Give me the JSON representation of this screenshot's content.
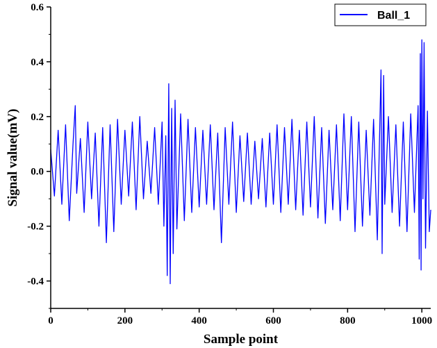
{
  "chart_data": {
    "type": "line",
    "title": "",
    "xlabel": "Sample point",
    "ylabel": "Signal value(mV)",
    "xlim": [
      0,
      1024
    ],
    "ylim": [
      -0.5,
      0.6
    ],
    "xticks": [
      0,
      200,
      400,
      600,
      800,
      1000
    ],
    "xtick_labels": [
      "0",
      "200",
      "400",
      "600",
      "800",
      "1000"
    ],
    "yticks": [
      -0.4,
      -0.2,
      0.0,
      0.2,
      0.4,
      0.6
    ],
    "ytick_labels": [
      "-0.4",
      "-0.2",
      "0.0",
      "0.2",
      "0.4",
      "0.6"
    ],
    "grid": false,
    "legend_position": "top-right",
    "series": [
      {
        "name": "Ball_1",
        "color": "#0000ff",
        "x": [
          0,
          10,
          20,
          30,
          40,
          50,
          60,
          66,
          70,
          80,
          90,
          100,
          110,
          120,
          130,
          140,
          150,
          160,
          170,
          180,
          190,
          200,
          210,
          220,
          230,
          240,
          250,
          260,
          270,
          280,
          290,
          300,
          305,
          310,
          314,
          318,
          322,
          326,
          330,
          335,
          340,
          350,
          360,
          370,
          380,
          390,
          400,
          410,
          420,
          430,
          440,
          450,
          460,
          470,
          480,
          490,
          500,
          510,
          520,
          530,
          540,
          550,
          560,
          570,
          580,
          590,
          600,
          610,
          620,
          630,
          640,
          650,
          660,
          670,
          680,
          690,
          700,
          710,
          720,
          730,
          740,
          750,
          760,
          770,
          780,
          790,
          800,
          810,
          820,
          830,
          840,
          850,
          860,
          870,
          880,
          890,
          893,
          897,
          900,
          910,
          920,
          930,
          940,
          950,
          960,
          970,
          980,
          990,
          993,
          996,
          998,
          1000,
          1003,
          1006,
          1010,
          1015,
          1020,
          1024
        ],
        "y": [
          0.08,
          -0.09,
          0.15,
          -0.12,
          0.17,
          -0.18,
          0.1,
          0.24,
          -0.08,
          0.12,
          -0.15,
          0.18,
          -0.1,
          0.14,
          -0.2,
          0.16,
          -0.26,
          0.17,
          -0.22,
          0.19,
          -0.12,
          0.15,
          -0.09,
          0.18,
          -0.14,
          0.2,
          -0.1,
          0.11,
          -0.08,
          0.16,
          -0.12,
          0.18,
          -0.2,
          0.13,
          -0.38,
          0.32,
          -0.41,
          0.23,
          -0.3,
          0.26,
          -0.21,
          0.21,
          -0.18,
          0.19,
          -0.15,
          0.16,
          -0.13,
          0.15,
          -0.12,
          0.17,
          -0.14,
          0.14,
          -0.26,
          0.16,
          -0.12,
          0.18,
          -0.15,
          0.13,
          -0.11,
          0.14,
          -0.12,
          0.11,
          -0.1,
          0.12,
          -0.13,
          0.14,
          -0.12,
          0.17,
          -0.15,
          0.16,
          -0.12,
          0.19,
          -0.14,
          0.15,
          -0.16,
          0.18,
          -0.13,
          0.2,
          -0.17,
          0.16,
          -0.19,
          0.15,
          -0.14,
          0.17,
          -0.18,
          0.21,
          -0.14,
          0.2,
          -0.22,
          0.18,
          -0.2,
          0.15,
          -0.16,
          0.19,
          -0.25,
          0.37,
          -0.3,
          0.35,
          -0.12,
          0.2,
          -0.15,
          0.17,
          -0.2,
          0.18,
          -0.22,
          0.21,
          -0.15,
          0.24,
          -0.32,
          0.43,
          -0.36,
          0.48,
          -0.1,
          0.47,
          -0.28,
          0.22,
          -0.22,
          -0.14
        ]
      }
    ]
  }
}
